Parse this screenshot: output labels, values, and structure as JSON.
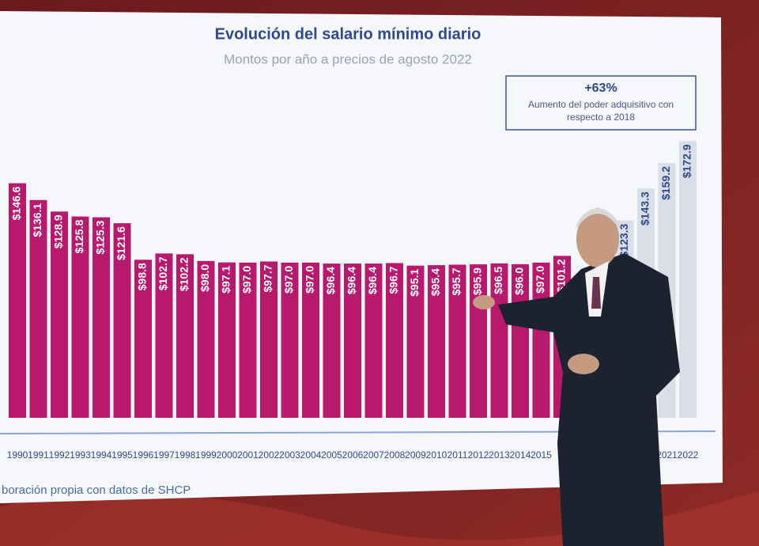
{
  "chart_data": {
    "type": "bar",
    "title": "Evolución del salario mínimo diario",
    "subtitle": "Montos por año a precios de agosto 2022",
    "annotation": {
      "headline": "+63%",
      "text": "Aumento del poder adquisitivo con respecto a 2018"
    },
    "source": "boración propia con datos de SHCP",
    "categories": [
      "1990",
      "1991",
      "1992",
      "1993",
      "1994",
      "1995",
      "1996",
      "1997",
      "1998",
      "1999",
      "2000",
      "2001",
      "2002",
      "2003",
      "2004",
      "2005",
      "2006",
      "2007",
      "2008",
      "2009",
      "2010",
      "2011",
      "2012",
      "2013",
      "2014",
      "2015",
      null,
      null,
      null,
      null,
      null,
      "2021",
      "2022"
    ],
    "values": [
      146.6,
      136.1,
      128.9,
      125.8,
      125.3,
      121.6,
      98.8,
      102.7,
      102.2,
      98.0,
      97.1,
      97.0,
      97.7,
      97.0,
      97.0,
      96.4,
      96.4,
      96.4,
      96.7,
      95.1,
      95.4,
      95.7,
      95.9,
      96.5,
      96.0,
      97.0,
      101.2,
      null,
      null,
      123.3,
      143.3,
      159.2,
      172.9
    ],
    "value_labels": [
      "$146.6",
      "$136.1",
      "$128.9",
      "$125.8",
      "$125.3",
      "$121.6",
      "$98.8",
      "$102.7",
      "$102.2",
      "$98.0",
      "$97.1",
      "$97.0",
      "$97.7",
      "$97.0",
      "$97.0",
      "$96.4",
      "$96.4",
      "$96.4",
      "$96.7",
      "$95.1",
      "$95.4",
      "$95.7",
      "$95.9",
      "$96.5",
      "$96.0",
      "$97.0",
      "$101.2",
      null,
      null,
      "$123.3",
      "$143.3",
      "$159.2",
      "$172.9"
    ],
    "colors": [
      "#b8196d",
      "#b8196d",
      "#b8196d",
      "#b8196d",
      "#b8196d",
      "#b8196d",
      "#b8196d",
      "#b8196d",
      "#b8196d",
      "#b8196d",
      "#b8196d",
      "#b8196d",
      "#b8196d",
      "#b8196d",
      "#b8196d",
      "#b8196d",
      "#b8196d",
      "#b8196d",
      "#b8196d",
      "#b8196d",
      "#b8196d",
      "#b8196d",
      "#b8196d",
      "#b8196d",
      "#b8196d",
      "#b8196d",
      "#b8196d",
      "#b8196d",
      "#b8196d",
      "#d9dee8",
      "#d9dee8",
      "#d9dee8",
      "#d9dee8"
    ],
    "ylim": [
      0,
      180
    ]
  }
}
